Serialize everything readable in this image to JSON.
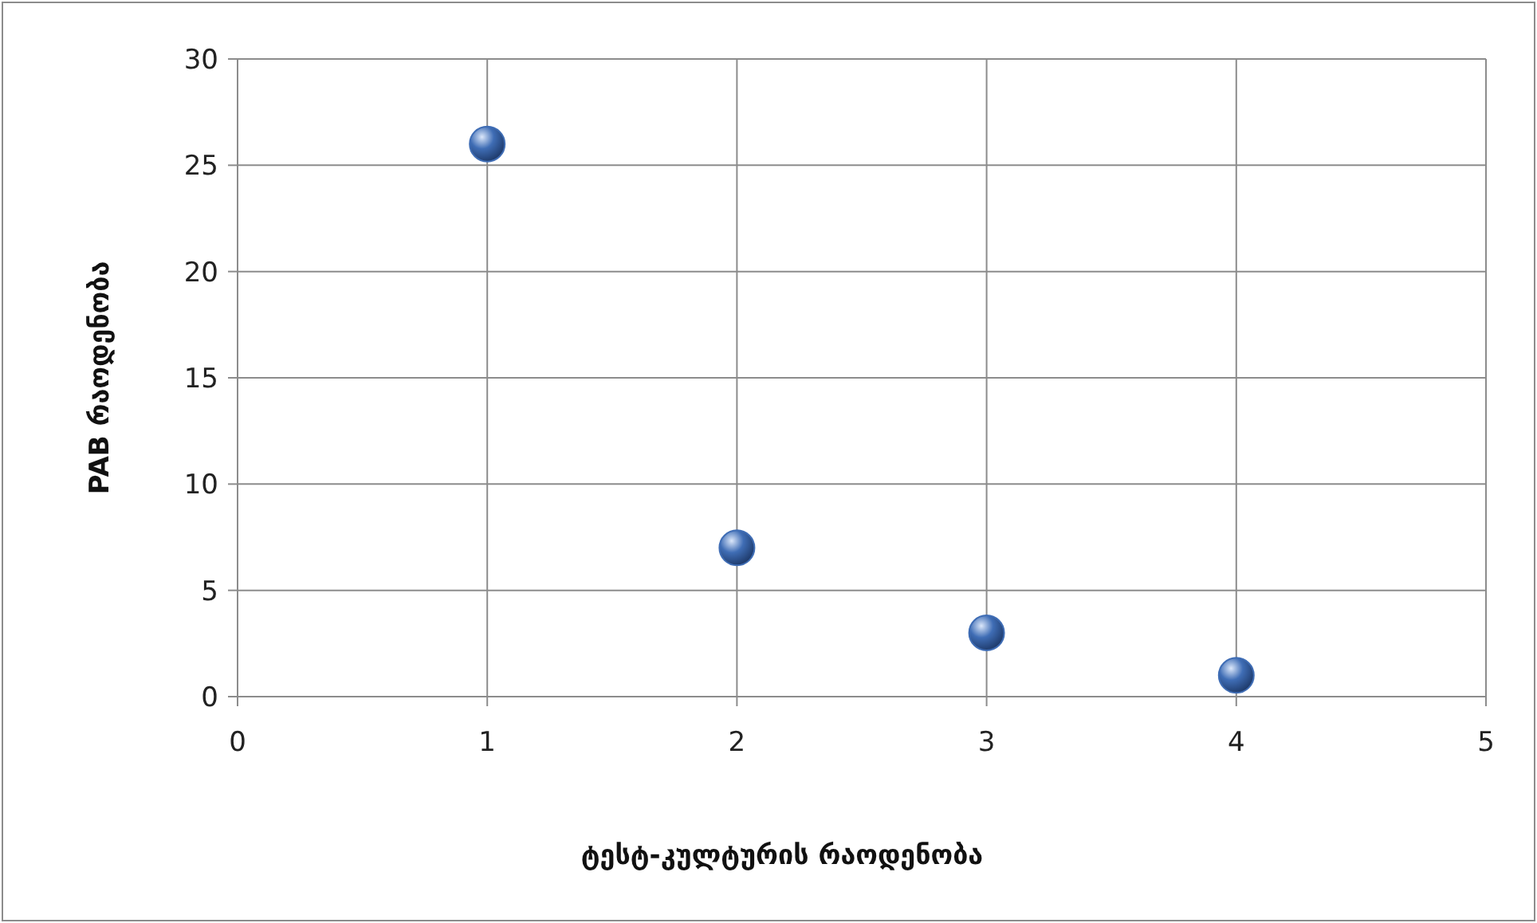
{
  "chart_data": {
    "type": "scatter",
    "xlabel": "ტესტ-კულტურის რაოდენობა",
    "ylabel": "PAB რაოდენობა",
    "x": [
      1,
      2,
      3,
      4
    ],
    "values": [
      26,
      7,
      3,
      1
    ],
    "color": "#3f6db5",
    "xlim": [
      0,
      5
    ],
    "xticks": [
      0,
      1,
      2,
      3,
      4,
      5
    ],
    "ylim": [
      0,
      30
    ],
    "yticks": [
      0,
      5,
      10,
      15,
      20,
      25,
      30
    ],
    "grid": true,
    "marker": "circle"
  }
}
